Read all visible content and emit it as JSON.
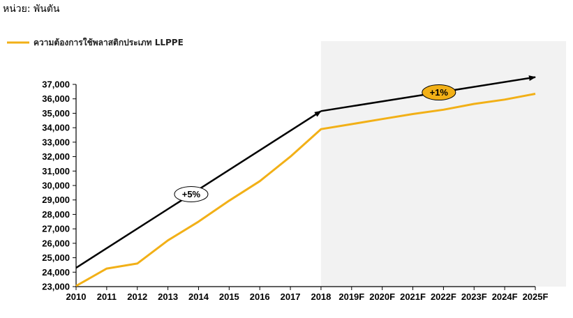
{
  "unit_label": "หน่วย: พันตัน",
  "chart_data": {
    "type": "line",
    "categories": [
      "2010",
      "2011",
      "2012",
      "2013",
      "2014",
      "2015",
      "2016",
      "2017",
      "2018",
      "2019F",
      "2020F",
      "2021F",
      "2022F",
      "2023F",
      "2024F",
      "2025F"
    ],
    "series": [
      {
        "name": "ความต้องการใช้พลาสติกประเภท LLPPE",
        "values": [
          23050,
          24250,
          24600,
          26200,
          27500,
          28950,
          30300,
          32000,
          33900,
          34250,
          34600,
          34950,
          35250,
          35650,
          35950,
          36350
        ]
      }
    ],
    "ylim": [
      23000,
      37000
    ],
    "yticks": [
      23000,
      24000,
      25000,
      26000,
      27000,
      28000,
      29000,
      30000,
      31000,
      32000,
      33000,
      34000,
      35000,
      36000,
      37000
    ],
    "ytick_labels": [
      "23,000",
      "24,000",
      "25,000",
      "26,000",
      "27,000",
      "28,000",
      "29,000",
      "30,000",
      "31,000",
      "32,000",
      "33,000",
      "34,000",
      "35,000",
      "36,000",
      "37,000"
    ],
    "shaded_region": {
      "from": "2018",
      "to": "2025F",
      "color": "#f2f2f2"
    },
    "trend_arrows": [
      {
        "from": [
          "2010",
          24300
        ],
        "to": [
          "2018",
          35150
        ],
        "label": "+5%"
      },
      {
        "from": [
          "2018",
          35150
        ],
        "to": [
          "2025F",
          37500
        ],
        "label": "+1%"
      }
    ],
    "legend": "top-left",
    "grid": false,
    "colors": {
      "series": "#f2b017",
      "arrow": "#000000",
      "badge_fill": "#f2b017",
      "label_fill": "#ffffff"
    }
  }
}
